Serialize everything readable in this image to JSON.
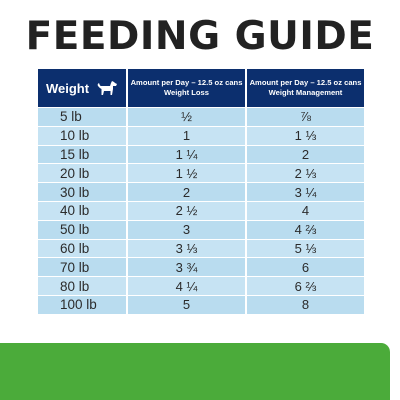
{
  "title": "FEEDING GUIDE",
  "table": {
    "headers": {
      "weight": "Weight",
      "weight_loss_line1": "Amount per Day – 12.5 oz cans",
      "weight_loss_line2": "Weight Loss",
      "weight_mgmt_line1": "Amount per Day – 12.5 oz cans",
      "weight_mgmt_line2": "Weight Management"
    },
    "rows": [
      {
        "weight": "5 lb",
        "loss": "½",
        "mgmt": "⅞"
      },
      {
        "weight": "10 lb",
        "loss": "1",
        "mgmt": "1 ⅓"
      },
      {
        "weight": "15 lb",
        "loss": "1 ¼",
        "mgmt": "2"
      },
      {
        "weight": "20 lb",
        "loss": "1 ½",
        "mgmt": "2 ⅓"
      },
      {
        "weight": "30 lb",
        "loss": "2",
        "mgmt": "3 ¼"
      },
      {
        "weight": "40 lb",
        "loss": "2 ½",
        "mgmt": "4"
      },
      {
        "weight": "50 lb",
        "loss": "3",
        "mgmt": "4 ⅔"
      },
      {
        "weight": "60 lb",
        "loss": "3 ⅓",
        "mgmt": "5 ⅓"
      },
      {
        "weight": "70 lb",
        "loss": "3 ¾",
        "mgmt": "6"
      },
      {
        "weight": "80 lb",
        "loss": "4 ¼",
        "mgmt": "6 ⅔"
      },
      {
        "weight": "100 lb",
        "loss": "5",
        "mgmt": "8"
      }
    ]
  },
  "colors": {
    "header_bg": "#0c2f6e",
    "row_bg": "#b9dcef",
    "title_text": "#222222",
    "bottom_band": "#4bab3a"
  },
  "icons": {
    "weight_header": "dog-icon"
  }
}
